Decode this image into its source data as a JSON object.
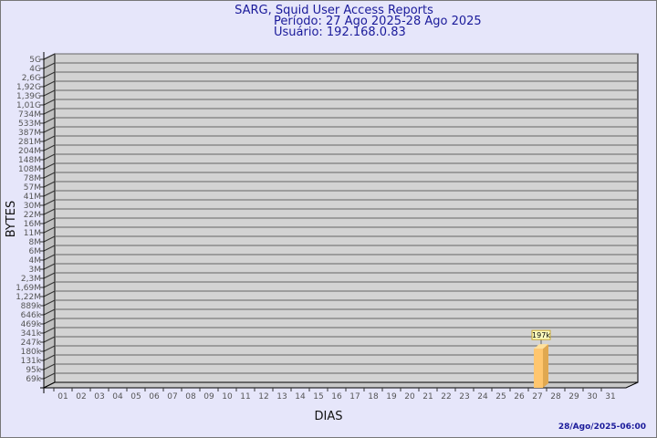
{
  "chart_data": {
    "type": "bar",
    "title": "SARG, Squid User Access Reports",
    "subtitle_period": "Período: 27 Ago 2025-28 Ago 2025",
    "subtitle_user": "Usuário: 192.168.0.83",
    "xlabel": "DIAS",
    "ylabel": "BYTES",
    "y_scale": "log",
    "grid": true,
    "categories": [
      "01",
      "02",
      "03",
      "04",
      "05",
      "06",
      "07",
      "08",
      "09",
      "10",
      "11",
      "12",
      "13",
      "14",
      "15",
      "16",
      "17",
      "18",
      "19",
      "20",
      "21",
      "22",
      "23",
      "24",
      "25",
      "26",
      "27",
      "28",
      "29",
      "30",
      "31"
    ],
    "values": [
      null,
      null,
      null,
      null,
      null,
      null,
      null,
      null,
      null,
      null,
      null,
      null,
      null,
      null,
      null,
      null,
      null,
      null,
      null,
      null,
      null,
      null,
      null,
      null,
      null,
      null,
      197000,
      null,
      null,
      null,
      null
    ],
    "data_labels": {
      "27": "197k"
    },
    "y_tick_labels": [
      "5G",
      "4G",
      "2,6G",
      "1,92G",
      "1,39G",
      "1,01G",
      "734M",
      "533M",
      "387M",
      "281M",
      "204M",
      "148M",
      "108M",
      "78M",
      "57M",
      "41M",
      "30M",
      "22M",
      "16M",
      "11M",
      "8M",
      "6M",
      "4M",
      "3M",
      "2,3M",
      "1,69M",
      "1,22M",
      "889k",
      "646k",
      "469k",
      "341k",
      "247k",
      "180k",
      "131k",
      "95k",
      "69k"
    ],
    "bar_color": "#ffc66e",
    "plot_background": "#d3d3d3",
    "footer": "28/Ago/2025-06:00"
  }
}
